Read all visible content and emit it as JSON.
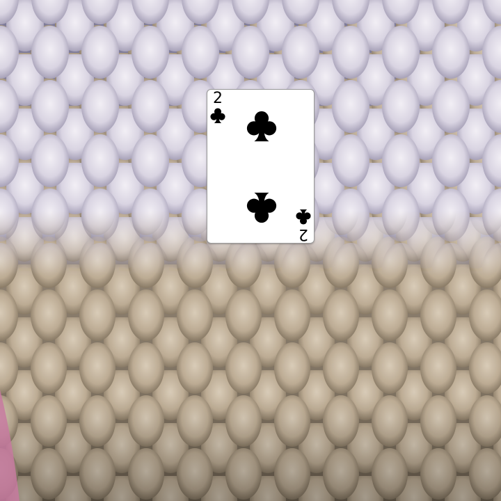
{
  "scene": {
    "background_description_icon": "fish-scales-texture",
    "card": {
      "rank": "2",
      "suit": "clubs",
      "suit_icon": "club-icon",
      "color": "#000000"
    }
  }
}
